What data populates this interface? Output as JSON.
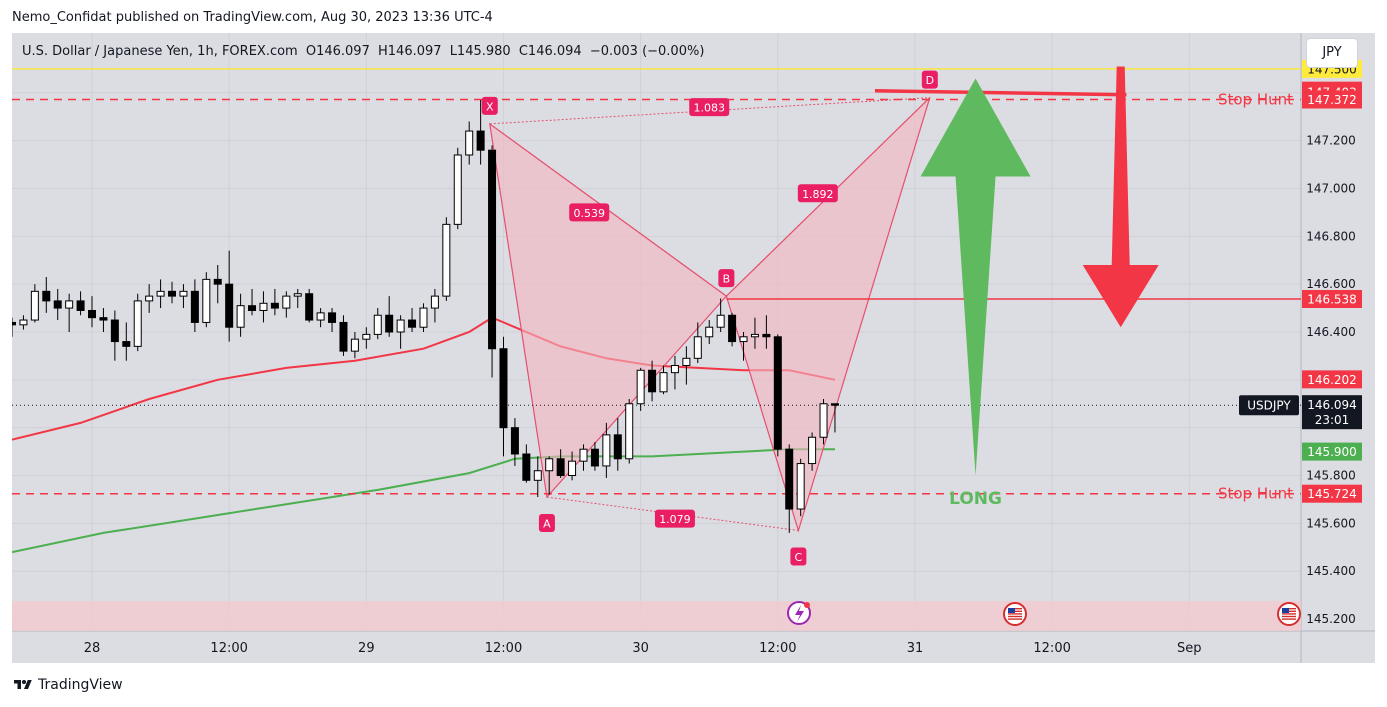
{
  "header": {
    "publisher_text": "Nemo_Confidat published on TradingView.com, Aug 30, 2023 13:36 UTC-4"
  },
  "legend": {
    "symbol_description": "U.S. Dollar / Japanese Yen, 1h, FOREX.com",
    "open": "O146.097",
    "high": "H146.097",
    "low": "L145.980",
    "close": "C146.094",
    "change": "−0.003 (−0.00%)"
  },
  "currency_button": {
    "label": "JPY"
  },
  "footer": {
    "brand": "TradingView",
    "logo_icon": "tradingview-logo-icon"
  },
  "colors": {
    "background": "#dcdde2",
    "up_candle": "#ffffff",
    "down_candle": "#000000",
    "pattern_fill": "#f4b6c2",
    "pattern_stroke": "#e5506f",
    "ema_red": "#f23645",
    "ema_green": "#4caf50",
    "yellow_line": "#f5e642",
    "long_arrow": "#5fba5f",
    "short_arrow": "#f23645"
  },
  "chart_data": {
    "type": "candlestick",
    "symbol": "USDJPY",
    "timeframe": "1h",
    "y_range": [
      145.15,
      147.65
    ],
    "x_ticks": [
      {
        "label": "28",
        "index": 7
      },
      {
        "label": "12:00",
        "index": 19
      },
      {
        "label": "29",
        "index": 31
      },
      {
        "label": "12:00",
        "index": 43
      },
      {
        "label": "30",
        "index": 55
      },
      {
        "label": "12:00",
        "index": 67
      },
      {
        "label": "31",
        "index": 79
      },
      {
        "label": "12:00",
        "index": 91
      },
      {
        "label": "Sep",
        "index": 103
      }
    ],
    "y_ticks": [
      "147.200",
      "147.000",
      "146.800",
      "146.600",
      "146.400",
      "145.800",
      "145.600",
      "145.400",
      "145.200"
    ],
    "candles": [
      [
        146.44,
        146.46,
        146.38,
        146.43
      ],
      [
        146.43,
        146.47,
        146.41,
        146.45
      ],
      [
        146.45,
        146.6,
        146.44,
        146.57
      ],
      [
        146.57,
        146.63,
        146.48,
        146.53
      ],
      [
        146.53,
        146.58,
        146.45,
        146.5
      ],
      [
        146.5,
        146.56,
        146.4,
        146.53
      ],
      [
        146.53,
        146.57,
        146.47,
        146.49
      ],
      [
        146.49,
        146.55,
        146.42,
        146.46
      ],
      [
        146.46,
        146.5,
        146.4,
        146.45
      ],
      [
        146.45,
        146.49,
        146.28,
        146.36
      ],
      [
        146.36,
        146.44,
        146.28,
        146.34
      ],
      [
        146.34,
        146.56,
        146.32,
        146.53
      ],
      [
        146.53,
        146.6,
        146.48,
        146.55
      ],
      [
        146.55,
        146.62,
        146.5,
        146.57
      ],
      [
        146.57,
        146.61,
        146.52,
        146.55
      ],
      [
        146.55,
        146.6,
        146.5,
        146.57
      ],
      [
        146.57,
        146.62,
        146.4,
        146.44
      ],
      [
        146.44,
        146.65,
        146.42,
        146.62
      ],
      [
        146.62,
        146.68,
        146.52,
        146.6
      ],
      [
        146.6,
        146.74,
        146.36,
        146.42
      ],
      [
        146.42,
        146.56,
        146.38,
        146.51
      ],
      [
        146.51,
        146.58,
        146.47,
        146.49
      ],
      [
        146.49,
        146.57,
        146.44,
        146.52
      ],
      [
        146.52,
        146.58,
        146.47,
        146.5
      ],
      [
        146.5,
        146.57,
        146.46,
        146.55
      ],
      [
        146.55,
        146.58,
        146.5,
        146.56
      ],
      [
        146.56,
        146.58,
        146.44,
        146.45
      ],
      [
        146.45,
        146.5,
        146.42,
        146.48
      ],
      [
        146.48,
        146.5,
        146.4,
        146.44
      ],
      [
        146.44,
        146.47,
        146.3,
        146.32
      ],
      [
        146.32,
        146.4,
        146.29,
        146.37
      ],
      [
        146.37,
        146.42,
        146.33,
        146.39
      ],
      [
        146.39,
        146.5,
        146.37,
        146.47
      ],
      [
        146.47,
        146.55,
        146.38,
        146.4
      ],
      [
        146.4,
        146.47,
        146.33,
        146.45
      ],
      [
        146.45,
        146.5,
        146.4,
        146.42
      ],
      [
        146.42,
        146.52,
        146.4,
        146.5
      ],
      [
        146.5,
        146.58,
        146.44,
        146.55
      ],
      [
        146.55,
        146.88,
        146.53,
        146.85
      ],
      [
        146.85,
        147.17,
        146.83,
        147.14
      ],
      [
        147.14,
        147.28,
        147.1,
        147.24
      ],
      [
        147.24,
        147.37,
        147.1,
        147.16
      ],
      [
        147.16,
        147.18,
        146.21,
        146.33
      ],
      [
        146.33,
        146.38,
        145.88,
        146.0
      ],
      [
        146.0,
        146.04,
        145.84,
        145.89
      ],
      [
        145.89,
        145.93,
        145.77,
        145.78
      ],
      [
        145.78,
        145.88,
        145.71,
        145.82
      ],
      [
        145.82,
        145.88,
        145.72,
        145.87
      ],
      [
        145.87,
        145.91,
        145.79,
        145.8
      ],
      [
        145.8,
        145.9,
        145.78,
        145.86
      ],
      [
        145.86,
        145.93,
        145.82,
        145.91
      ],
      [
        145.91,
        145.94,
        145.82,
        145.84
      ],
      [
        145.84,
        146.02,
        145.79,
        145.97
      ],
      [
        145.97,
        146.04,
        145.82,
        145.87
      ],
      [
        145.87,
        146.12,
        145.85,
        146.1
      ],
      [
        146.1,
        146.25,
        146.07,
        146.24
      ],
      [
        146.24,
        146.28,
        146.11,
        146.15
      ],
      [
        146.15,
        146.26,
        146.14,
        146.23
      ],
      [
        146.23,
        146.3,
        146.16,
        146.26
      ],
      [
        146.26,
        146.34,
        146.18,
        146.29
      ],
      [
        146.29,
        146.44,
        146.27,
        146.38
      ],
      [
        146.38,
        146.45,
        146.35,
        146.42
      ],
      [
        146.42,
        146.54,
        146.4,
        146.47
      ],
      [
        146.47,
        146.48,
        146.34,
        146.36
      ],
      [
        146.36,
        146.4,
        146.28,
        146.38
      ],
      [
        146.38,
        146.46,
        146.33,
        146.39
      ],
      [
        146.39,
        146.47,
        146.33,
        146.38
      ],
      [
        146.38,
        146.39,
        145.88,
        145.91
      ],
      [
        145.91,
        145.93,
        145.56,
        145.66
      ],
      [
        145.66,
        145.87,
        145.63,
        145.85
      ],
      [
        145.85,
        145.98,
        145.82,
        145.96
      ],
      [
        145.96,
        146.12,
        145.93,
        146.1
      ],
      [
        146.1,
        146.1,
        145.98,
        146.094
      ]
    ],
    "series": [
      {
        "name": "",
        "color": "#f23645",
        "x": [
          0,
          6,
          12,
          18,
          24,
          30,
          36,
          40,
          42,
          44,
          48,
          52,
          56,
          60,
          64,
          68,
          72
        ],
        "y": [
          145.95,
          146.02,
          146.12,
          146.2,
          146.25,
          146.28,
          146.33,
          146.4,
          146.46,
          146.42,
          146.34,
          146.29,
          146.26,
          146.25,
          146.24,
          146.24,
          146.2
        ]
      },
      {
        "name": "",
        "color": "#4caf50",
        "x": [
          0,
          8,
          16,
          24,
          32,
          40,
          44,
          48,
          56,
          64,
          68,
          72
        ],
        "y": [
          145.48,
          145.56,
          145.62,
          145.68,
          145.74,
          145.81,
          145.87,
          145.88,
          145.88,
          145.9,
          145.91,
          145.91
        ]
      }
    ],
    "harmonic_pattern": {
      "points": [
        {
          "label": "X",
          "x": 41.8,
          "y": 147.27
        },
        {
          "label": "A",
          "x": 46.8,
          "y": 145.71
        },
        {
          "label": "B",
          "x": 62.5,
          "y": 146.55
        },
        {
          "label": "C",
          "x": 68.8,
          "y": 145.57
        },
        {
          "label": "D",
          "x": 80.3,
          "y": 147.38
        }
      ],
      "ratios": [
        {
          "label": "1.083",
          "x": 61.0,
          "y": 147.34
        },
        {
          "label": "0.539",
          "x": 50.5,
          "y": 146.9
        },
        {
          "label": "1.892",
          "x": 70.5,
          "y": 146.98
        },
        {
          "label": "1.079",
          "x": 58.0,
          "y": 145.62
        }
      ]
    },
    "horizontal_levels": [
      {
        "label": "147.500",
        "value": 147.5,
        "style": "solid",
        "color": "#f5e642",
        "badge_bg": "#ffeb3b",
        "badge_fg": "#131722"
      },
      {
        "label": "147.409",
        "value": 147.409,
        "style": "none",
        "color": "#f23645",
        "badge_bg": "#f23645",
        "badge_fg": "#ffffff"
      },
      {
        "label": "147.403",
        "value": 147.403,
        "style": "none",
        "color": "#f23645",
        "badge_bg": "#f23645",
        "badge_fg": "#ffffff"
      },
      {
        "label": "147.372",
        "value": 147.372,
        "style": "dashed",
        "color": "#f23645",
        "badge_bg": "#f23645",
        "badge_fg": "#ffffff",
        "text": "Stop Hunt"
      },
      {
        "label": "146.538",
        "value": 146.538,
        "style": "solid_from_B",
        "color": "#f23645",
        "badge_bg": "#f23645",
        "badge_fg": "#ffffff"
      },
      {
        "label": "146.202",
        "value": 146.202,
        "style": "none",
        "color": "#f23645",
        "badge_bg": "#f23645",
        "badge_fg": "#ffffff"
      },
      {
        "label": "145.900",
        "value": 145.9,
        "style": "none",
        "color": "#4caf50",
        "badge_bg": "#4caf50",
        "badge_fg": "#ffffff"
      },
      {
        "label": "145.724",
        "value": 145.724,
        "style": "dashed",
        "color": "#f23645",
        "badge_bg": "#f23645",
        "badge_fg": "#ffffff",
        "text": "Stop Hunt"
      }
    ],
    "current_price": {
      "symbol_label": "USDJPY",
      "price": "146.094",
      "countdown": "23:01",
      "value": 146.094
    },
    "annotations": [
      {
        "type": "arrow_up",
        "label": "LONG",
        "color": "#5fba5f"
      },
      {
        "type": "arrow_down",
        "label": "",
        "color": "#f23645"
      }
    ],
    "grid": true
  }
}
